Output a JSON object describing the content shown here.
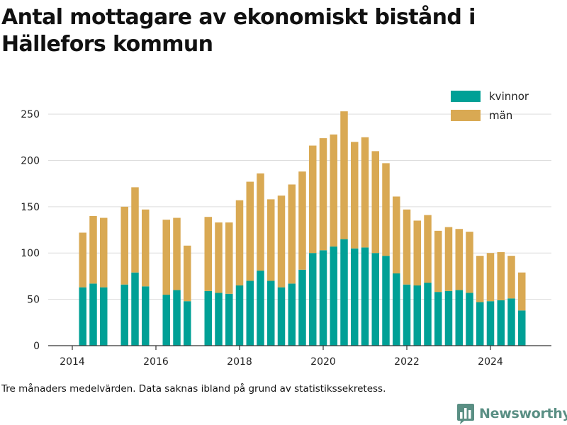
{
  "title": "Antal mottagare av ekonomiskt bistånd i Hällefors kommun",
  "note": "Tre månaders medelvärden. Data saknas ibland på grund av statistikssekretess.",
  "brand": {
    "name": "Newsworthy",
    "icon": "bar-chart-logo-icon",
    "color": "#5a8f84"
  },
  "chart_data": {
    "type": "bar",
    "stacked": true,
    "x": [
      "2014-04",
      "2014-07",
      "2014-10",
      "2015-04",
      "2015-07",
      "2015-10",
      "2016-04",
      "2016-07",
      "2016-10",
      "2017-04",
      "2017-07",
      "2017-10",
      "2018-01",
      "2018-04",
      "2018-07",
      "2018-10",
      "2019-01",
      "2019-04",
      "2019-07",
      "2019-10",
      "2020-01",
      "2020-04",
      "2020-07",
      "2020-10",
      "2021-01",
      "2021-04",
      "2021-07",
      "2021-10",
      "2022-01",
      "2022-04",
      "2022-07",
      "2022-10",
      "2023-01",
      "2023-04",
      "2023-07",
      "2023-10",
      "2024-01",
      "2024-04",
      "2024-07",
      "2024-10"
    ],
    "series": [
      {
        "name": "kvinnor",
        "color": "#00a096",
        "values": [
          63,
          67,
          63,
          66,
          79,
          64,
          55,
          60,
          48,
          59,
          57,
          56,
          65,
          70,
          81,
          70,
          63,
          67,
          82,
          100,
          103,
          107,
          115,
          105,
          106,
          100,
          97,
          78,
          66,
          65,
          68,
          58,
          59,
          60,
          57,
          47,
          48,
          49,
          51,
          38
        ]
      },
      {
        "name": "män",
        "color": "#d9a953",
        "values": [
          59,
          73,
          75,
          84,
          92,
          83,
          81,
          78,
          60,
          80,
          76,
          77,
          92,
          107,
          105,
          88,
          99,
          107,
          106,
          116,
          121,
          121,
          138,
          115,
          119,
          110,
          100,
          83,
          81,
          70,
          73,
          66,
          69,
          66,
          66,
          50,
          52,
          52,
          46,
          41
        ]
      }
    ],
    "ylim": [
      0,
      260
    ],
    "yticks": [
      "0",
      "50",
      "100",
      "150",
      "200",
      "250"
    ],
    "xticks": [
      "2014",
      "2016",
      "2018",
      "2020",
      "2022",
      "2024"
    ],
    "legend_position": "top-right",
    "grid": "horizontal",
    "xlabel": "",
    "ylabel": ""
  }
}
